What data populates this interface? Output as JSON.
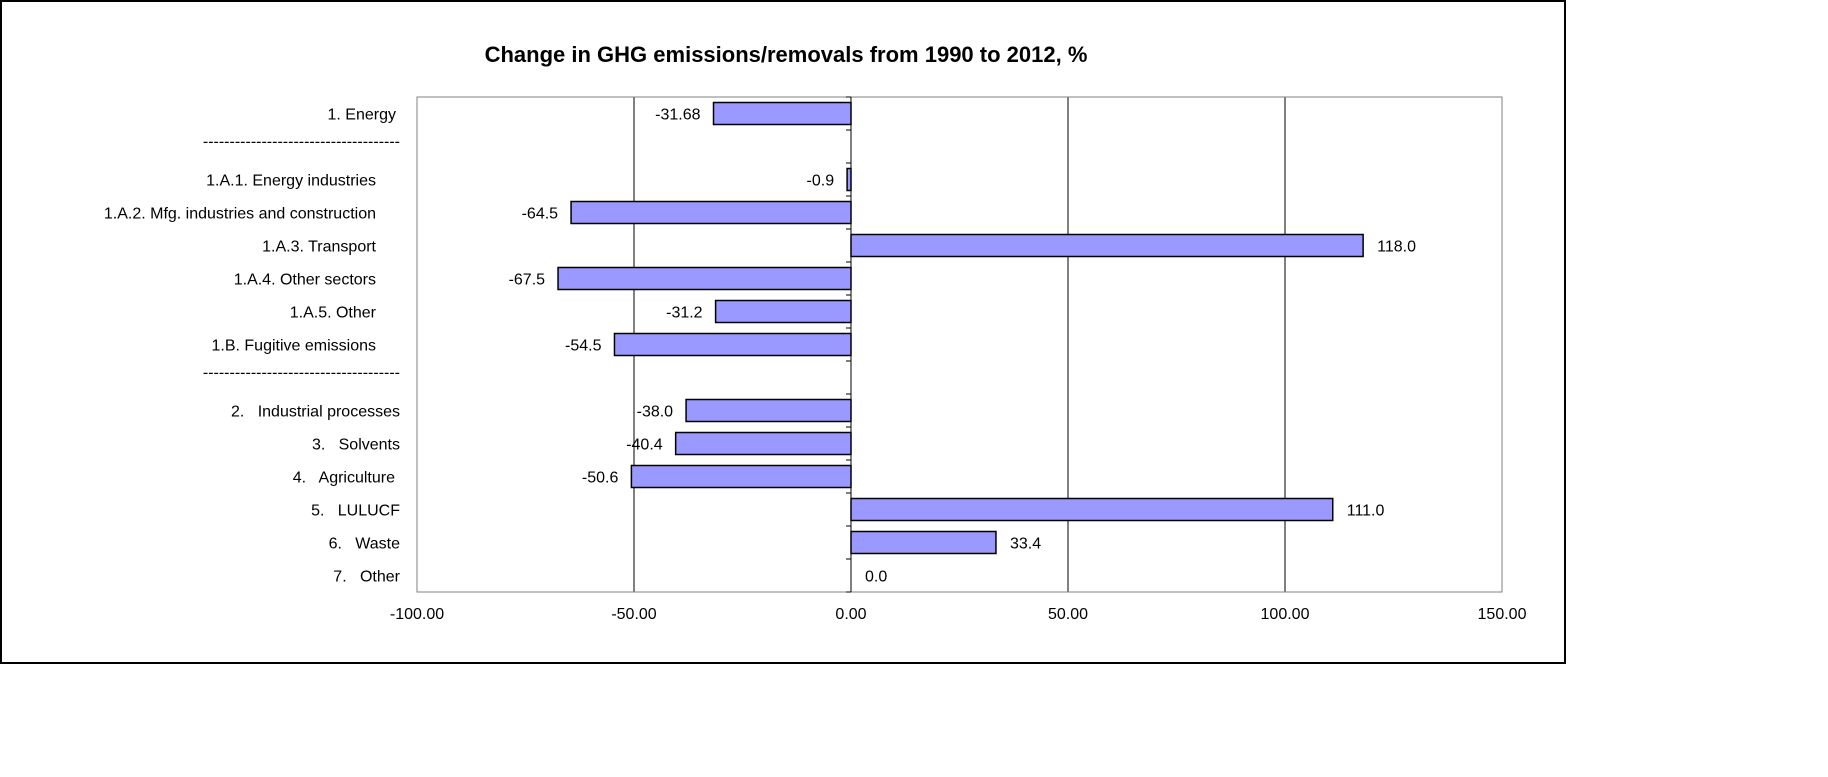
{
  "chart_data": {
    "type": "bar",
    "orientation": "horizontal",
    "title": "Change in GHG emissions/removals from 1990 to 2012, %",
    "xlabel": "",
    "ylabel": "",
    "xlim": [
      -100,
      150
    ],
    "x_ticks": [
      -100,
      -50,
      0,
      50,
      100,
      150
    ],
    "x_tick_labels": [
      "-100.00",
      "-50.00",
      "0.00",
      "50.00",
      "100.00",
      "150.00"
    ],
    "gridlines": "vertical",
    "legend": "none",
    "bar_color": "#9999FF",
    "categories": [
      "1. Energy",
      "-------------------------------------",
      "1.A.1. Energy industries",
      "1.A.2. Mfg. industries and construction",
      "1.A.3. Transport",
      "1.A.4. Other sectors",
      "1.A.5. Other",
      "1.B. Fugitive emissions",
      "-------------------------------------",
      "2.   Industrial processes",
      "3.   Solvents",
      "4.   Agriculture",
      "5.   LULUCF",
      "6.   Waste",
      "7.   Other"
    ],
    "values": [
      -31.68,
      null,
      -0.9,
      -64.5,
      118.0,
      -67.5,
      -31.2,
      -54.5,
      null,
      -38.0,
      -40.4,
      -50.6,
      111.0,
      33.4,
      0.0
    ],
    "data_labels": [
      "-31.68",
      "",
      "-0.9",
      "-64.5",
      "118.0",
      "-67.5",
      "-31.2",
      "-54.5",
      "",
      "-38.0",
      "-40.4",
      "-50.6",
      "111.0",
      "33.4",
      "0.0"
    ]
  }
}
